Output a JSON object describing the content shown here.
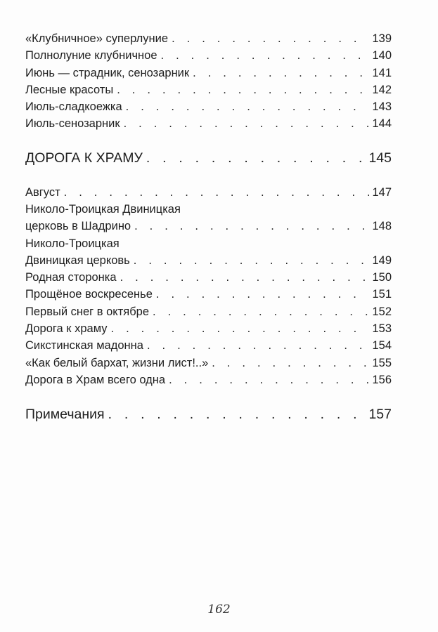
{
  "sections": [
    {
      "entries": [
        {
          "lines": [
            "«Клубничное» суперлуние"
          ],
          "page": "139"
        },
        {
          "lines": [
            "Полнолуние клубничное"
          ],
          "page": "140"
        },
        {
          "lines": [
            "Июнь — страдник, сенозарник"
          ],
          "page": "141"
        },
        {
          "lines": [
            "Лесные красоты"
          ],
          "page": "142"
        },
        {
          "lines": [
            "Июль-сладкоежка"
          ],
          "page": "143"
        },
        {
          "lines": [
            "Июль-сенозарник"
          ],
          "page": "144"
        }
      ]
    },
    {
      "heading": {
        "title": "ДОРОГА К ХРАМУ",
        "page": "145"
      }
    },
    {
      "entries": [
        {
          "lines": [
            "Август"
          ],
          "page": "147"
        },
        {
          "lines": [
            "Николо-Троицкая Двиницкая",
            "церковь в Шадрино"
          ],
          "page": "148"
        },
        {
          "lines": [
            "Николо-Троицкая",
            "Двиницкая церковь"
          ],
          "page": "149"
        },
        {
          "lines": [
            "Родная сторонка"
          ],
          "page": "150"
        },
        {
          "lines": [
            "Прощёное воскресенье"
          ],
          "page": "151"
        },
        {
          "lines": [
            "Первый снег в октябре"
          ],
          "page": "152"
        },
        {
          "lines": [
            "Дорога к храму"
          ],
          "page": "153"
        },
        {
          "lines": [
            "Сикстинская мадонна"
          ],
          "page": "154"
        },
        {
          "lines": [
            "«Как белый бархат, жизни лист!..»"
          ],
          "page": "155"
        },
        {
          "lines": [
            "Дорога в Храм всего одна"
          ],
          "page": "156"
        }
      ]
    },
    {
      "heading": {
        "title": "Примечания",
        "page": "157"
      }
    }
  ],
  "folio": "162"
}
